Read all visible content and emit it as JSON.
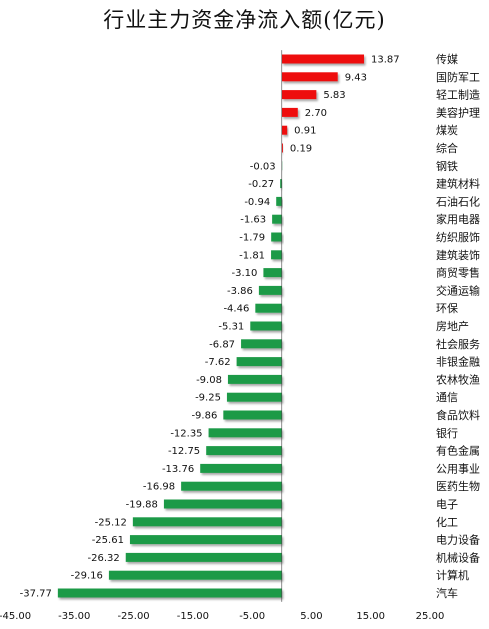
{
  "chart_data": {
    "type": "bar",
    "orientation": "horizontal",
    "title": "行业主力资金净流入额(亿元)",
    "xlabel": "",
    "ylabel": "",
    "xlim": [
      -45,
      25
    ],
    "xticks": [
      "-45.00",
      "-35.00",
      "-25.00",
      "-15.00",
      "-5.00",
      "5.00",
      "15.00",
      "25.00"
    ],
    "xtick_values": [
      -45,
      -35,
      -25,
      -15,
      -5,
      5,
      15,
      25
    ],
    "grid": false,
    "legend": "none",
    "colors": {
      "positive": "#ee1111",
      "negative": "#1f9a47",
      "text": "#111111",
      "axis": "#444444"
    },
    "categories": [
      "传媒",
      "国防军工",
      "轻工制造",
      "美容护理",
      "煤炭",
      "综合",
      "钢铁",
      "建筑材料",
      "石油石化",
      "家用电器",
      "纺织服饰",
      "建筑装饰",
      "商贸零售",
      "交通运输",
      "环保",
      "房地产",
      "社会服务",
      "非银金融",
      "农林牧渔",
      "通信",
      "食品饮料",
      "银行",
      "有色金属",
      "公用事业",
      "医药生物",
      "电子",
      "化工",
      "电力设备",
      "机械设备",
      "计算机",
      "汽车"
    ],
    "values": [
      13.87,
      9.43,
      5.83,
      2.7,
      0.91,
      0.19,
      -0.03,
      -0.27,
      -0.94,
      -1.63,
      -1.79,
      -1.81,
      -3.1,
      -3.86,
      -4.46,
      -5.31,
      -6.87,
      -7.62,
      -9.08,
      -9.25,
      -9.86,
      -12.35,
      -12.75,
      -13.76,
      -16.98,
      -19.88,
      -25.12,
      -25.61,
      -26.32,
      -29.16,
      -37.77
    ],
    "value_labels": [
      "13.87",
      "9.43",
      "5.83",
      "2.70",
      "0.91",
      "0.19",
      "-0.03",
      "-0.27",
      "-0.94",
      "-1.63",
      "-1.79",
      "-1.81",
      "-3.10",
      "-3.86",
      "-4.46",
      "-5.31",
      "-6.87",
      "-7.62",
      "-9.08",
      "-9.25",
      "-9.86",
      "-12.35",
      "-12.75",
      "-13.76",
      "-16.98",
      "-19.88",
      "-25.12",
      "-25.61",
      "-26.32",
      "-29.16",
      "-37.77"
    ]
  }
}
